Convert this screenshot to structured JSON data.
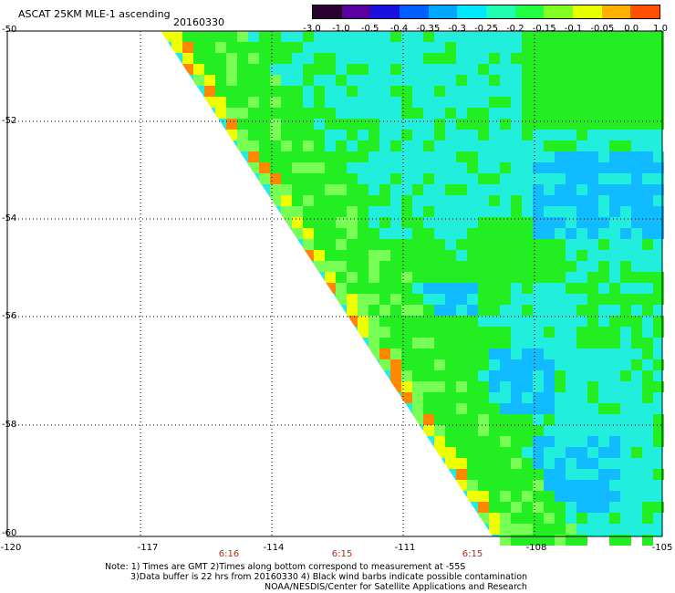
{
  "header": {
    "title": "ASCAT 25KM MLE-1 ascending",
    "date": "20160330"
  },
  "colorbar": {
    "labels": [
      "-3.0",
      "-1.0",
      "-0.5",
      "-0.4",
      "-0.35",
      "-0.3",
      "-0.25",
      "-0.2",
      "-0.15",
      "-0.1",
      "-0.05",
      "0.0",
      "1.0"
    ],
    "colors": [
      "#2a0030",
      "#5a00a0",
      "#1a10e0",
      "#0060ff",
      "#00a8ff",
      "#00e8ff",
      "#20ffb0",
      "#20ff40",
      "#80ff20",
      "#e8ff00",
      "#ffb000",
      "#ff5000",
      "#e00000"
    ]
  },
  "map": {
    "lat_labels": [
      "-50",
      "-52",
      "-54",
      "-56",
      "-58",
      "-60"
    ],
    "lon_labels": [
      "-120",
      "-117",
      "-114",
      "-111",
      "-108",
      "-105"
    ],
    "time_labels": [
      "6:16",
      "6:15",
      "6:15"
    ],
    "grid_color": "#000000",
    "swath_colors": {
      "green": "#22ee22",
      "cyan": "#22eedd",
      "blue": "#11bbff",
      "light_green": "#77ff55",
      "yellow": "#eeff00",
      "orange": "#ff8800"
    }
  },
  "notes": {
    "line1": "Note: 1) Times are GMT 2)Times along bottom correspond to measurement at -55S",
    "line2": "3)Data buffer is 22 hrs from 20160330 4) Black wind barbs indicate possible contamination",
    "line3": "NOAA/NESDIS/Center for Satellite Applications and Research"
  }
}
